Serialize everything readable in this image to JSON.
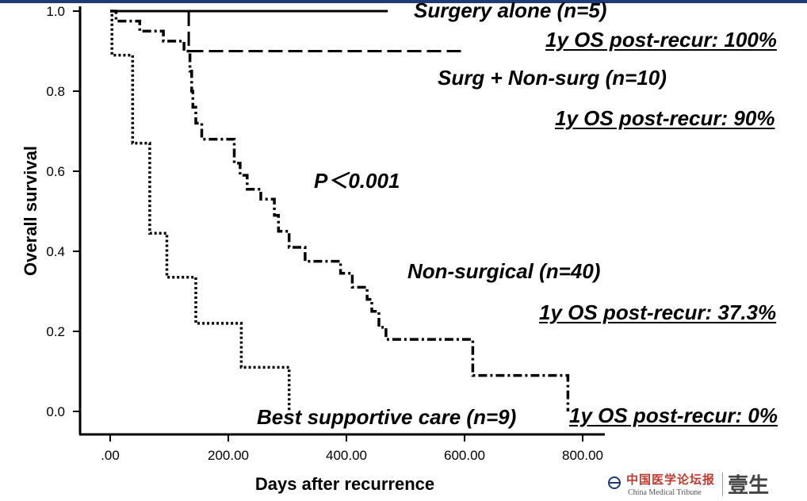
{
  "chart_data": {
    "type": "line",
    "step": true,
    "title": "",
    "xlabel": "Days after recurrence",
    "ylabel": "Overall survival",
    "xlim": [
      0,
      800
    ],
    "ylim": [
      0,
      1.0
    ],
    "xticks": [
      0,
      200,
      400,
      600,
      800
    ],
    "xtick_labels": [
      ".00",
      "200.00",
      "400.00",
      "600.00",
      "800.00"
    ],
    "yticks": [
      0,
      0.2,
      0.4,
      0.6,
      0.8,
      1.0
    ],
    "ytick_labels": [
      "0.0",
      "0.2",
      "0.4",
      "0.6",
      "0.8",
      "1.0"
    ],
    "grid": false,
    "legend": "none",
    "series": [
      {
        "name": "Surgery alone (n=5)",
        "style": "solid",
        "color": "#000000",
        "points": [
          [
            0,
            1.0
          ],
          [
            470,
            1.0
          ]
        ]
      },
      {
        "name": "Surg + Non-surg (n=10)",
        "style": "dashed",
        "color": "#000000",
        "points": [
          [
            0,
            1.0
          ],
          [
            133,
            1.0
          ],
          [
            133,
            0.9
          ],
          [
            596,
            0.9
          ]
        ]
      },
      {
        "name": "Non-surgical (n=40)",
        "style": "dashdot",
        "color": "#000000",
        "points": [
          [
            0,
            1.0
          ],
          [
            10,
            1.0
          ],
          [
            10,
            0.975
          ],
          [
            50,
            0.975
          ],
          [
            50,
            0.95
          ],
          [
            90,
            0.95
          ],
          [
            90,
            0.925
          ],
          [
            125,
            0.925
          ],
          [
            125,
            0.9
          ],
          [
            135,
            0.9
          ],
          [
            135,
            0.85
          ],
          [
            138,
            0.85
          ],
          [
            138,
            0.8
          ],
          [
            140,
            0.8
          ],
          [
            140,
            0.76
          ],
          [
            145,
            0.76
          ],
          [
            145,
            0.72
          ],
          [
            155,
            0.72
          ],
          [
            155,
            0.68
          ],
          [
            210,
            0.68
          ],
          [
            210,
            0.62
          ],
          [
            220,
            0.62
          ],
          [
            220,
            0.59
          ],
          [
            232,
            0.59
          ],
          [
            232,
            0.555
          ],
          [
            255,
            0.555
          ],
          [
            255,
            0.53
          ],
          [
            278,
            0.53
          ],
          [
            278,
            0.49
          ],
          [
            285,
            0.49
          ],
          [
            285,
            0.45
          ],
          [
            303,
            0.45
          ],
          [
            303,
            0.41
          ],
          [
            330,
            0.41
          ],
          [
            330,
            0.375
          ],
          [
            390,
            0.375
          ],
          [
            390,
            0.345
          ],
          [
            410,
            0.345
          ],
          [
            410,
            0.31
          ],
          [
            435,
            0.31
          ],
          [
            435,
            0.28
          ],
          [
            443,
            0.28
          ],
          [
            443,
            0.25
          ],
          [
            455,
            0.25
          ],
          [
            455,
            0.21
          ],
          [
            467,
            0.21
          ],
          [
            467,
            0.18
          ],
          [
            614,
            0.18
          ],
          [
            614,
            0.09
          ],
          [
            775,
            0.09
          ],
          [
            775,
            0.0
          ]
        ]
      },
      {
        "name": "Best supportive care (n=9)",
        "style": "dotted",
        "color": "#000000",
        "points": [
          [
            0,
            1.0
          ],
          [
            3,
            1.0
          ],
          [
            3,
            0.89
          ],
          [
            38,
            0.89
          ],
          [
            38,
            0.67
          ],
          [
            67,
            0.67
          ],
          [
            67,
            0.445
          ],
          [
            96,
            0.445
          ],
          [
            96,
            0.335
          ],
          [
            145,
            0.335
          ],
          [
            145,
            0.22
          ],
          [
            222,
            0.22
          ],
          [
            222,
            0.11
          ],
          [
            303,
            0.11
          ],
          [
            303,
            0.0
          ]
        ]
      }
    ],
    "annotations": {
      "surgery_alone": "Surgery alone (n=5)",
      "os_surgery_alone": "1y OS post-recur: 100%",
      "surg_nonsurg": "Surg + Non-surg (n=10)",
      "os_surg_nonsurg": "1y OS post-recur: 90%",
      "p_value": "P＜0.001",
      "nonsurgical": "Non-surgical (n=40)",
      "os_nonsurgical": "1y OS post-recur: 37.3%",
      "best_supportive": "Best supportive care (n=9)",
      "os_best_supportive": "1y OS post-recur: 0%"
    }
  },
  "footer": {
    "publisher_cn": "中国医学论坛报",
    "publisher_en": "China Medical Tribune",
    "brand": "壹生"
  },
  "colors": {
    "topbar": "#1f3b73",
    "publisher_red": "#c0392b"
  }
}
